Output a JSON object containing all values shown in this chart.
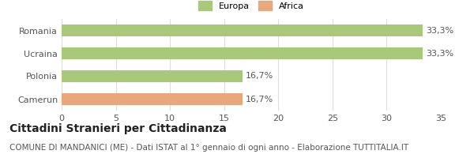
{
  "categories": [
    "Romania",
    "Ucraina",
    "Polonia",
    "Camerun"
  ],
  "values": [
    33.3,
    33.3,
    16.7,
    16.7
  ],
  "labels": [
    "33,3%",
    "33,3%",
    "16,7%",
    "16,7%"
  ],
  "colors": [
    "#a8c87a",
    "#a8c87a",
    "#a8c87a",
    "#e8a87c"
  ],
  "legend": [
    {
      "label": "Europa",
      "color": "#a8c87a"
    },
    {
      "label": "Africa",
      "color": "#e8a87c"
    }
  ],
  "xlim": [
    0,
    35
  ],
  "xticks": [
    0,
    5,
    10,
    15,
    20,
    25,
    30,
    35
  ],
  "title": "Cittadini Stranieri per Cittadinanza",
  "subtitle": "COMUNE DI MANDANICI (ME) - Dati ISTAT al 1° gennaio di ogni anno - Elaborazione TUTTITALIA.IT",
  "title_fontsize": 10,
  "subtitle_fontsize": 7.5,
  "label_fontsize": 8,
  "tick_fontsize": 8,
  "bar_height": 0.52,
  "background_color": "#ffffff",
  "grid_color": "#dddddd"
}
